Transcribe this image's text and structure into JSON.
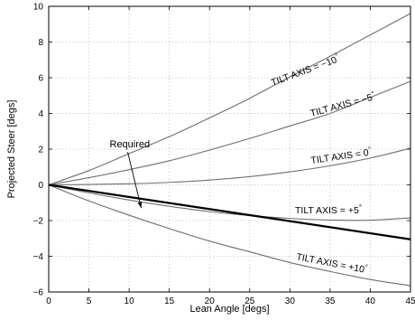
{
  "chart_data": {
    "type": "line",
    "xlabel": "Lean Angle [degs]",
    "ylabel": "Projected Steer [degs]",
    "xlim": [
      0,
      45
    ],
    "ylim": [
      -6,
      10
    ],
    "xticks": [
      0,
      5,
      10,
      15,
      20,
      25,
      30,
      35,
      40,
      45
    ],
    "yticks": [
      -6,
      -4,
      -2,
      0,
      2,
      4,
      6,
      8,
      10
    ],
    "grid": true,
    "series": [
      {
        "name": "TILT AXIS = −10°",
        "label_main": "TILT AXIS = −10",
        "x": [
          0,
          5,
          10,
          15,
          20,
          25,
          30,
          35,
          40,
          45
        ],
        "y": [
          0,
          0.8,
          1.75,
          2.7,
          3.75,
          4.85,
          6.05,
          7.2,
          8.4,
          9.6
        ]
      },
      {
        "name": "TILT AXIS = −5°",
        "label_main": "TILT AXIS = −5",
        "x": [
          0,
          5,
          10,
          15,
          20,
          25,
          30,
          35,
          40,
          45
        ],
        "y": [
          0,
          0.4,
          0.85,
          1.35,
          1.95,
          2.6,
          3.3,
          4.0,
          4.9,
          5.8
        ]
      },
      {
        "name": "TILT AXIS = 0°",
        "label_main": "TILT AXIS = 0",
        "x": [
          0,
          5,
          10,
          15,
          20,
          25,
          30,
          35,
          40,
          45
        ],
        "y": [
          0,
          0.02,
          0.06,
          0.14,
          0.27,
          0.46,
          0.73,
          1.07,
          1.5,
          2.05
        ]
      },
      {
        "name": "TILT AXIS = +5°",
        "label_main": "TILT AXIS = +5",
        "x": [
          0,
          5,
          10,
          15,
          20,
          25,
          30,
          35,
          40,
          45
        ],
        "y": [
          0,
          -0.45,
          -0.85,
          -1.2,
          -1.5,
          -1.72,
          -1.88,
          -1.97,
          -1.98,
          -1.85
        ]
      },
      {
        "name": "TILT AXIS = +10°",
        "label_main": "TILT AXIS = +10",
        "x": [
          0,
          5,
          10,
          15,
          20,
          25,
          30,
          35,
          40,
          45
        ],
        "y": [
          0,
          -0.9,
          -1.7,
          -2.45,
          -3.15,
          -3.75,
          -4.35,
          -4.85,
          -5.3,
          -5.65
        ]
      },
      {
        "name": "Required",
        "x": [
          0,
          45
        ],
        "y": [
          0,
          -3.05
        ],
        "bold": true
      }
    ],
    "annotations": [
      {
        "text": "Required",
        "x": 7.8,
        "y": 2.3,
        "arrow_to": [
          11.5,
          -1.3
        ]
      }
    ],
    "degree_symbol": "°"
  }
}
